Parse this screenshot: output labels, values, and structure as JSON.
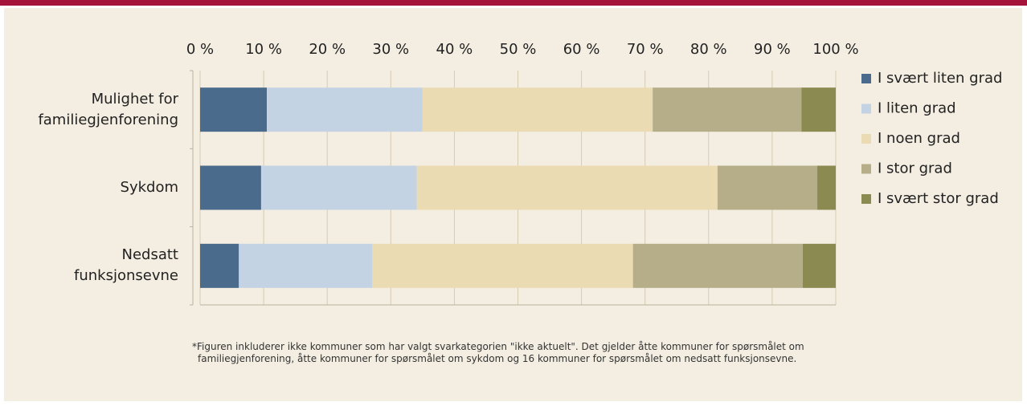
{
  "chart_data": {
    "type": "stacked_barh",
    "categories": [
      "Mulighet for\nfamiliegjenforening",
      "Sykdom",
      "Nedsatt\nfunksjonsevne"
    ],
    "series": [
      {
        "name": "I svært liten grad",
        "color": "#4a6b8b",
        "values": [
          10.5,
          9.6,
          6.1
        ]
      },
      {
        "name": "I liten grad",
        "color": "#c4d3e4",
        "values": [
          24.5,
          24.5,
          21.0
        ]
      },
      {
        "name": "I noen grad",
        "color": "#ebdbb3",
        "values": [
          36.2,
          47.3,
          41.0
        ]
      },
      {
        "name": "I stor grad",
        "color": "#b5ae88",
        "values": [
          23.4,
          15.7,
          26.7
        ]
      },
      {
        "name": "I svært stor grad",
        "color": "#8b8a50",
        "values": [
          5.4,
          2.9,
          5.2
        ]
      }
    ],
    "xlim": [
      0,
      100
    ],
    "xticks": [
      {
        "value": 0,
        "label": "0 %"
      },
      {
        "value": 10,
        "label": "10 %"
      },
      {
        "value": 20,
        "label": "20 %"
      },
      {
        "value": 30,
        "label": "30 %"
      },
      {
        "value": 40,
        "label": "40 %"
      },
      {
        "value": 50,
        "label": "50 %"
      },
      {
        "value": 60,
        "label": "60 %"
      },
      {
        "value": 70,
        "label": "70 %"
      },
      {
        "value": 80,
        "label": "80 %"
      },
      {
        "value": 90,
        "label": "90 %"
      },
      {
        "value": 100,
        "label": "100 %"
      }
    ],
    "grid": true,
    "legend": "right",
    "footnote": "*Figuren inkluderer ikke kommuner som har valgt svarkategorien \"ikke aktuelt\". Det gjelder åtte kommuner for spørsmålet om familiegjenforening, åtte kommuner for spørsmålet om sykdom og 16 kommuner for spørsmålet om nedsatt funksjonsevne."
  }
}
